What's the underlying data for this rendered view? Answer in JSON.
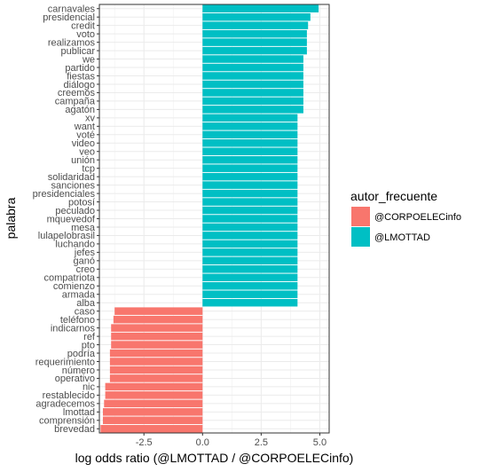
{
  "chart_data": {
    "type": "bar",
    "orientation": "horizontal",
    "xlabel": "log odds ratio (@LMOTTAD / @CORPOELECinfo)",
    "ylabel": "palabra",
    "xlim": [
      -4.4,
      5.4
    ],
    "xticks": [
      -2.5,
      0.0,
      2.5,
      5.0
    ],
    "xtick_labels": [
      "-2.5",
      "0.0",
      "2.5",
      "5.0"
    ],
    "grid": true,
    "legend": {
      "title": "autor_frecuente",
      "position": "right",
      "entries": [
        {
          "name": "@CORPOELECinfo",
          "color": "#F8766D"
        },
        {
          "name": "@LMOTTAD",
          "color": "#00BFC4"
        }
      ]
    },
    "categories": [
      "carnavales",
      "presidencial",
      "credit",
      "voto",
      "realizamos",
      "publicar",
      "we",
      "partido",
      "fiestas",
      "diálogo",
      "creemos",
      "campaña",
      "agatón",
      "xv",
      "want",
      "voté",
      "video",
      "veo",
      "unión",
      "tcp",
      "solidaridad",
      "sanciones",
      "presidenciales",
      "potosí",
      "peculado",
      "mquevedof",
      "mesa",
      "lulapelobrasil",
      "luchando",
      "jefes",
      "ganó",
      "creo",
      "compatriota",
      "comienzo",
      "armada",
      "alba",
      "caso",
      "teléfono",
      "indicarnos",
      "ref",
      "pto",
      "podría",
      "requerimiento",
      "número",
      "operativo",
      "nic",
      "restablecido",
      "agradecemos",
      "lmottad",
      "comprensión",
      "brevedad"
    ],
    "values": [
      4.95,
      4.6,
      4.5,
      4.45,
      4.45,
      4.45,
      4.3,
      4.3,
      4.3,
      4.3,
      4.3,
      4.3,
      4.3,
      4.05,
      4.05,
      4.05,
      4.05,
      4.05,
      4.05,
      4.05,
      4.05,
      4.05,
      4.05,
      4.05,
      4.05,
      4.05,
      4.05,
      4.05,
      4.05,
      4.05,
      4.05,
      4.05,
      4.05,
      4.05,
      4.05,
      4.05,
      -3.75,
      -3.8,
      -3.9,
      -3.9,
      -3.9,
      -3.95,
      -3.95,
      -3.95,
      -3.95,
      -4.15,
      -4.15,
      -4.2,
      -4.25,
      -4.25,
      -4.35
    ],
    "groups": [
      "@LMOTTAD",
      "@LMOTTAD",
      "@LMOTTAD",
      "@LMOTTAD",
      "@LMOTTAD",
      "@LMOTTAD",
      "@LMOTTAD",
      "@LMOTTAD",
      "@LMOTTAD",
      "@LMOTTAD",
      "@LMOTTAD",
      "@LMOTTAD",
      "@LMOTTAD",
      "@LMOTTAD",
      "@LMOTTAD",
      "@LMOTTAD",
      "@LMOTTAD",
      "@LMOTTAD",
      "@LMOTTAD",
      "@LMOTTAD",
      "@LMOTTAD",
      "@LMOTTAD",
      "@LMOTTAD",
      "@LMOTTAD",
      "@LMOTTAD",
      "@LMOTTAD",
      "@LMOTTAD",
      "@LMOTTAD",
      "@LMOTTAD",
      "@LMOTTAD",
      "@LMOTTAD",
      "@LMOTTAD",
      "@LMOTTAD",
      "@LMOTTAD",
      "@LMOTTAD",
      "@LMOTTAD",
      "@CORPOELECinfo",
      "@CORPOELECinfo",
      "@CORPOELECinfo",
      "@CORPOELECinfo",
      "@CORPOELECinfo",
      "@CORPOELECinfo",
      "@CORPOELECinfo",
      "@CORPOELECinfo",
      "@CORPOELECinfo",
      "@CORPOELECinfo",
      "@CORPOELECinfo",
      "@CORPOELECinfo",
      "@CORPOELECinfo",
      "@CORPOELECinfo",
      "@CORPOELECinfo"
    ]
  }
}
